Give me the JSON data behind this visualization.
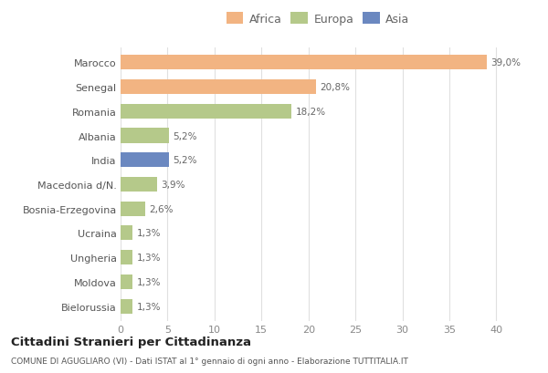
{
  "countries": [
    "Marocco",
    "Senegal",
    "Romania",
    "Albania",
    "India",
    "Macedonia d/N.",
    "Bosnia-Erzegovina",
    "Ucraina",
    "Ungheria",
    "Moldova",
    "Bielorussia"
  ],
  "values": [
    39.0,
    20.8,
    18.2,
    5.2,
    5.2,
    3.9,
    2.6,
    1.3,
    1.3,
    1.3,
    1.3
  ],
  "labels": [
    "39,0%",
    "20,8%",
    "18,2%",
    "5,2%",
    "5,2%",
    "3,9%",
    "2,6%",
    "1,3%",
    "1,3%",
    "1,3%",
    "1,3%"
  ],
  "colors": [
    "#F2B482",
    "#F2B482",
    "#B5C98A",
    "#B5C98A",
    "#6B88C0",
    "#B5C98A",
    "#B5C98A",
    "#B5C98A",
    "#B5C98A",
    "#B5C98A",
    "#B5C98A"
  ],
  "legend": [
    {
      "label": "Africa",
      "color": "#F2B482"
    },
    {
      "label": "Europa",
      "color": "#B5C98A"
    },
    {
      "label": "Asia",
      "color": "#6B88C0"
    }
  ],
  "xlim": [
    0,
    42
  ],
  "xticks": [
    0,
    5,
    10,
    15,
    20,
    25,
    30,
    35,
    40
  ],
  "title": "Cittadini Stranieri per Cittadinanza",
  "subtitle": "COMUNE DI AGUGLIARO (VI) - Dati ISTAT al 1° gennaio di ogni anno - Elaborazione TUTTITALIA.IT",
  "bg_color": "#ffffff",
  "bar_height": 0.6,
  "label_fontsize": 7.5,
  "ytick_fontsize": 8,
  "xtick_fontsize": 8
}
